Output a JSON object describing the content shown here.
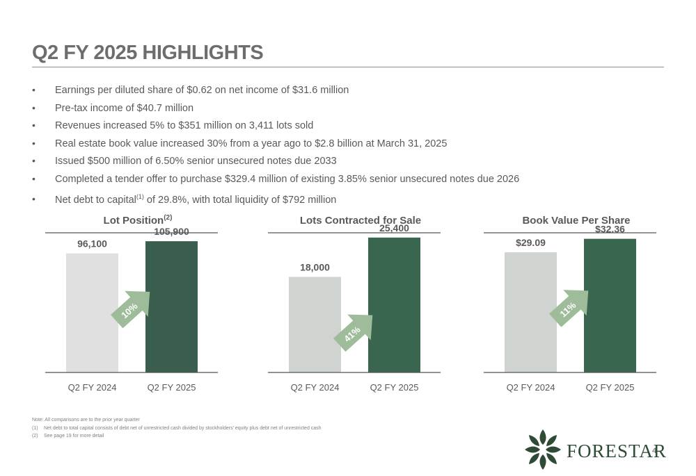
{
  "title": "Q2 FY 2025 HIGHLIGHTS",
  "bullets": [
    {
      "text": "Earnings per diluted share of $0.62 on net income of $31.6 million"
    },
    {
      "text": "Pre-tax income of $40.7 million"
    },
    {
      "text": "Revenues increased 5% to $351 million on 3,411 lots sold"
    },
    {
      "text": "Real estate book value increased 30% from a year ago to $2.8 billion at March 31, 2025"
    },
    {
      "text": "Issued $500 million of 6.50% senior unsecured notes due 2033"
    },
    {
      "text": "Completed a tender offer to purchase $329.4 million of existing 3.85% senior unsecured notes due 2026"
    },
    {
      "text_before": "Net debt to capital",
      "sup": "(1)",
      "text_after": " of 29.8%, with total liquidity of $792 million"
    }
  ],
  "bullet_symbol": "•",
  "chart_data": [
    {
      "type": "bar",
      "title": "Lot Position",
      "title_sup": "(2)",
      "categories": [
        "Q2 FY 2024",
        "Q2 FY 2025"
      ],
      "values": [
        96100,
        105900
      ],
      "labels": [
        "96,100",
        "105,900"
      ],
      "colors": [
        "#e0e0e0",
        "#3a5e4e"
      ],
      "change": "10%",
      "ylim": [
        0,
        120000
      ]
    },
    {
      "type": "bar",
      "title": "Lots Contracted for Sale",
      "title_sup": "",
      "categories": [
        "Q2 FY 2024",
        "Q2 FY 2025"
      ],
      "values": [
        18000,
        25400
      ],
      "labels": [
        "18,000",
        "25,400"
      ],
      "colors": [
        "#d0d4d1",
        "#3a6650"
      ],
      "change": "41%",
      "ylim": [
        0,
        28000
      ]
    },
    {
      "type": "bar",
      "title": "Book Value Per Share",
      "title_sup": "",
      "categories": [
        "Q2 FY 2024",
        "Q2 FY 2025"
      ],
      "values": [
        29.09,
        32.36
      ],
      "labels": [
        "$29.09",
        "$32.36"
      ],
      "colors": [
        "#d0d4d1",
        "#3a6650"
      ],
      "change": "11%",
      "ylim": [
        0,
        36
      ]
    }
  ],
  "notes": {
    "note": "Note: All comparisons are to the prior year quarter",
    "footnotes": [
      {
        "num": "(1)",
        "text": "Net debt to total capital consists of debt net of unrestricted cash divided by stockholders’ equity plus debt net of unrestricted cash"
      },
      {
        "num": "(2)",
        "text": "See page 19 for more detail"
      }
    ]
  },
  "logo": {
    "wordmark": "FORESTAR",
    "icon": "leaf-cluster-icon"
  },
  "page_number": "4",
  "colors": {
    "arrow": "#9fbc9a",
    "axis": "#555555",
    "accent_dark_green": "#3a6650"
  }
}
